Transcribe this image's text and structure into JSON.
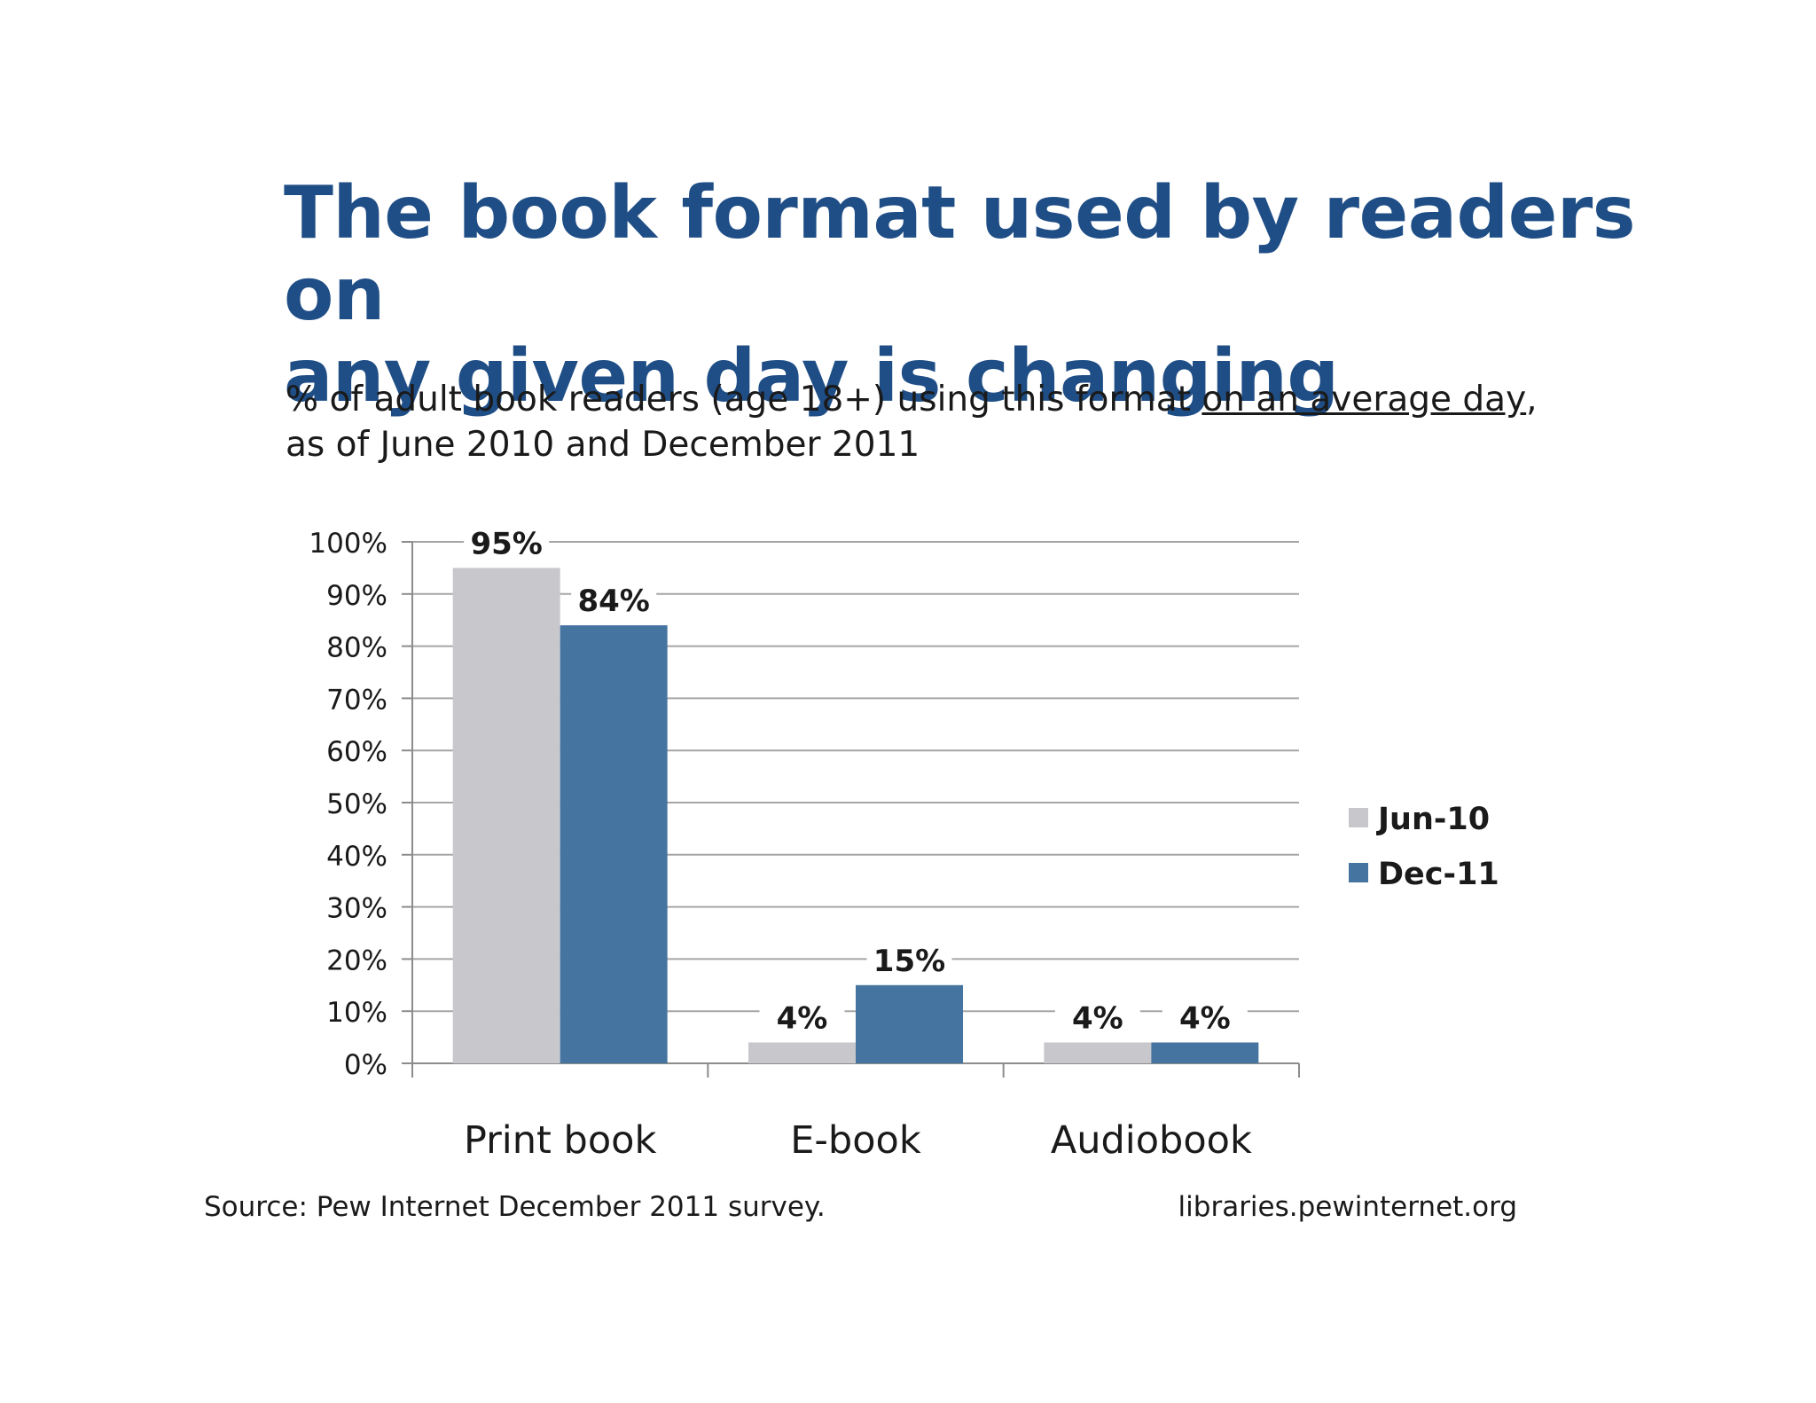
{
  "title_line1": "The book format used by readers on",
  "title_line2": "any given day is changing",
  "subtitle": {
    "part1": "% of adult book readers (age 18+) using this format ",
    "underlined": "on an average day",
    "part2": ",",
    "line2": "as of June 2010 and December 2011"
  },
  "footer": {
    "source": "Source: Pew Internet December 2011 survey.",
    "site": "libraries.pewinternet.org"
  },
  "chart_data": {
    "type": "bar",
    "categories": [
      "Print book",
      "E-book",
      "Audiobook"
    ],
    "series": [
      {
        "name": "Jun-10",
        "values": [
          95,
          4,
          4
        ],
        "labels": [
          "95%",
          "4%",
          "4%"
        ],
        "color": "#c8c8cc"
      },
      {
        "name": "Dec-11",
        "values": [
          84,
          15,
          4
        ],
        "labels": [
          "84%",
          "15%",
          "4%"
        ],
        "color": "#4674a0"
      }
    ],
    "ylim": [
      0,
      100
    ],
    "yticks": [
      0,
      10,
      20,
      30,
      40,
      50,
      60,
      70,
      80,
      90,
      100
    ],
    "ytick_labels": [
      "0%",
      "10%",
      "20%",
      "30%",
      "40%",
      "50%",
      "60%",
      "70%",
      "80%",
      "90%",
      "100%"
    ],
    "grid": true,
    "legend": "right",
    "gridline_color": "#a6a6a6",
    "axis_color": "#8c8c8c"
  }
}
